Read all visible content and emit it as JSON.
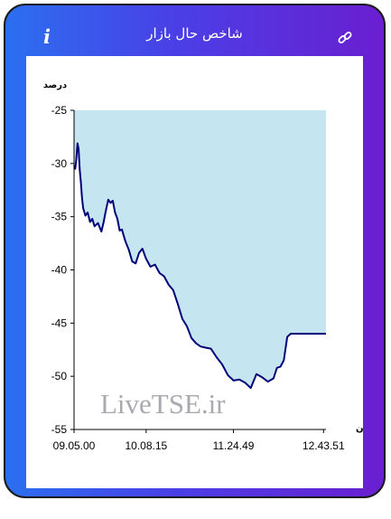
{
  "header": {
    "title": "شاخص حال بازار",
    "info_icon": "info-icon",
    "link_icon": "link-icon"
  },
  "watermark": "LiveTSE.ir",
  "colors": {
    "frame_start": "#2b6ff0",
    "frame_end": "#6a1fd0",
    "fill": "#c5e6f0",
    "line": "#00007a"
  },
  "chart_data": {
    "type": "area",
    "title": "",
    "ylabel": "درصد",
    "xlabel": "زمان",
    "ylim": [
      -55,
      -25
    ],
    "yticks": [
      "-25",
      "-30",
      "-35",
      "-40",
      "-45",
      "-50",
      "-55"
    ],
    "xlim": [
      "09:05:00",
      "12:46:00"
    ],
    "xticks": [
      "09.05.00",
      "10.08.15",
      "11.24.49",
      "12.43.51"
    ],
    "grid": false,
    "series": [
      {
        "x": [
          "09:05:00",
          "09:06:00",
          "09:07:00",
          "09:08:00",
          "09:09:00",
          "09:10:00",
          "09:11:00",
          "09:12:00",
          "09:13:00",
          "09:15:00",
          "09:17:00",
          "09:19:00",
          "09:21:00",
          "09:23:00",
          "09:26:00",
          "09:29:00",
          "09:31:00",
          "09:33:00",
          "09:35:00",
          "09:37:00",
          "09:39:00",
          "09:41:00",
          "09:43:00",
          "09:45:00",
          "09:47:00",
          "09:50:00",
          "09:53:00",
          "09:56:00",
          "09:59:00",
          "10:02:00",
          "10:05:00",
          "10:08:00",
          "10:12:00",
          "10:16:00",
          "10:20:00",
          "10:24:00",
          "10:28:00",
          "10:32:00",
          "10:36:00",
          "10:40:00",
          "10:44:00",
          "10:48:00",
          "10:52:00",
          "10:56:00",
          "11:00:00",
          "11:05:00",
          "11:10:00",
          "11:15:00",
          "11:20:00",
          "11:25:00",
          "11:30:00",
          "11:35:00",
          "11:40:00",
          "11:45:00",
          "11:50:00",
          "11:55:00",
          "12:00:00",
          "12:03:00",
          "12:06:00",
          "12:09:00",
          "12:12:00",
          "12:15:00",
          "12:18:00",
          "12:21:00",
          "12:24:00",
          "12:27:00",
          "12:30:00",
          "12:32:00",
          "12:34:00",
          "12:36:00",
          "12:40:00",
          "12:43:00",
          "12:46:00"
        ],
        "values": [
          -30.2,
          -30.5,
          -29.6,
          -28.1,
          -28.6,
          -30.6,
          -31.8,
          -33.2,
          -34.2,
          -34.9,
          -34.6,
          -35.5,
          -35.2,
          -35.9,
          -35.6,
          -36.4,
          -35.5,
          -34.4,
          -33.4,
          -33.7,
          -33.5,
          -34.6,
          -35.2,
          -36.3,
          -36.2,
          -37.3,
          -38.1,
          -39.2,
          -39.4,
          -38.4,
          -38.0,
          -38.9,
          -39.7,
          -39.5,
          -40.3,
          -40.6,
          -41.4,
          -41.9,
          -43.2,
          -44.6,
          -45.3,
          -46.4,
          -46.9,
          -47.2,
          -47.3,
          -47.4,
          -48.2,
          -48.9,
          -49.9,
          -50.4,
          -50.3,
          -50.6,
          -51.1,
          -49.8,
          -50.1,
          -50.5,
          -50.2,
          -49.2,
          -49.1,
          -48.5,
          -46.3,
          -46.0,
          -46.0,
          -46.0,
          -46.0,
          -46.0,
          -46.0,
          -46.0,
          -46.0,
          -46.0,
          -46.0,
          -46.0,
          -46.0
        ]
      }
    ]
  }
}
